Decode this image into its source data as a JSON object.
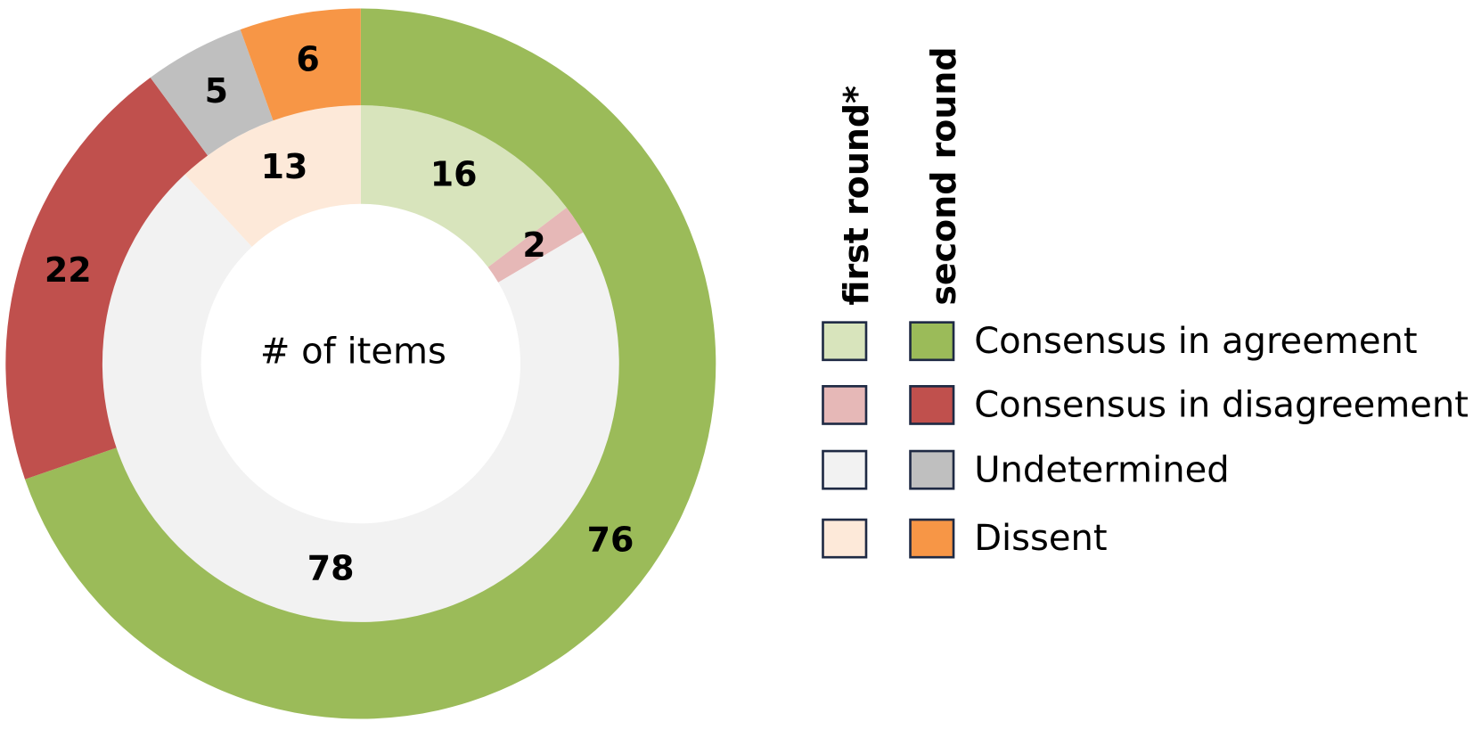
{
  "chart_data": {
    "type": "donut",
    "center_label": "# of items",
    "categories": [
      "Consensus in agreement",
      "Consensus in disagreement",
      "Undetermined",
      "Dissent"
    ],
    "series": [
      {
        "name": "first round*",
        "colors": [
          "#d8e4bc",
          "#e6b8b7",
          "#f2f2f2",
          "#fde9d9"
        ],
        "values": [
          16,
          2,
          78,
          13
        ]
      },
      {
        "name": "second round",
        "colors": [
          "#9bbb59",
          "#c0504d",
          "#bfbfbf",
          "#f79646"
        ],
        "values": [
          76,
          22,
          5,
          6
        ]
      }
    ]
  }
}
